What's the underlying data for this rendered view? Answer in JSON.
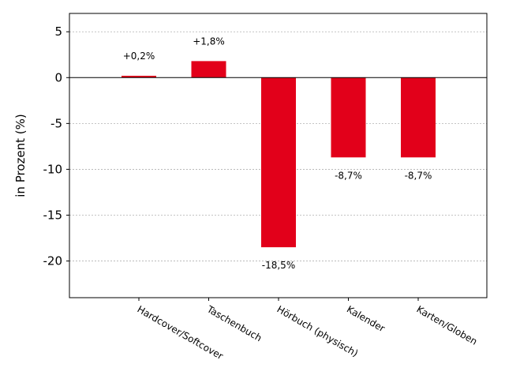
{
  "chart_data": {
    "type": "bar",
    "title": "",
    "xlabel": "",
    "ylabel": "in Prozent (%)",
    "categories": [
      "Hardcover/Softcover",
      "Taschenbuch",
      "Hörbuch (physisch)",
      "Kalender",
      "Karten/Globen"
    ],
    "values": [
      0.2,
      1.8,
      -18.5,
      -8.7,
      -8.7
    ],
    "data_labels": [
      "+0,2%",
      "+1,8%",
      "-18,5%",
      "-8,7%",
      "-8,7%"
    ],
    "ylim": [
      -24,
      7
    ],
    "yticks": [
      5,
      0,
      -5,
      -10,
      -15,
      -20
    ],
    "ytick_labels": [
      "5",
      "0",
      "-5",
      "-10",
      "-15",
      "-20"
    ],
    "grid": true,
    "legend": "none",
    "colors": {
      "bar": "#e2001a",
      "grid": "#b0b0b0",
      "axis": "#000000"
    }
  }
}
